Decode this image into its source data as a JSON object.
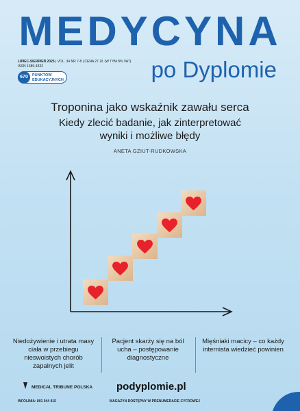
{
  "header": {
    "title": "MEDYCYNA",
    "subtitle": "po Dyplomie",
    "issue": "LIPIEC-SIERPIEŃ 2025",
    "volume": "VOL. 34 NR 7-8",
    "price": "CENA 27 ZŁ (W TYM 8% VAT)",
    "issn": "ISSN 1689-4332",
    "badge": {
      "number": "670",
      "text": "PUNKTÓW EDUKACYJNYCH"
    }
  },
  "cover_story": {
    "title": "Troponina jako wskaźnik zawału serca",
    "subtitle_lines": [
      "Kiedy zlecić badanie, jak zinterpretować",
      "wyniki i możliwe błędy"
    ],
    "author": "ANETA GZIUT-RUDKOWSKA"
  },
  "teasers": [
    "Niedożywienie i utrata masy ciała w przebiegu nieswoistych chorób zapalnych jelit",
    "Pacjent skarży się na ból ucha – postępowanie diagnostyczne",
    "Mięśniaki macicy – co każdy internista wiedzieć powinien"
  ],
  "footer": {
    "publisher": "MEDICAL TRIBUNE POLSKA",
    "website": "podyplomie.pl",
    "hotline": "INFOLINIA: 801 044 415",
    "note": "MAGAZYN DOSTĘPNY W PRENUMERACIE CYFROWEJ"
  }
}
